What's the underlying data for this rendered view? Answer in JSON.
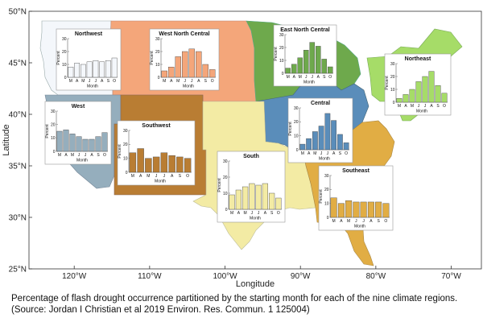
{
  "chart_data": {
    "type": "bar",
    "title": "Percentage of flash drought occurrence partitioned by the starting month for each of the nine climate regions.",
    "xlabel": "Longitude",
    "ylabel": "Latitude",
    "x_ticks": [
      "120°W",
      "110°W",
      "100°W",
      "90°W",
      "80°W",
      "70°W"
    ],
    "x_tick_values": [
      -120,
      -110,
      -100,
      -90,
      -80,
      -70
    ],
    "y_ticks": [
      "25°N",
      "30°N",
      "35°N",
      "40°N",
      "45°N",
      "50°N"
    ],
    "y_tick_values": [
      25,
      30,
      35,
      40,
      45,
      50
    ],
    "xlim": [
      -126,
      -66
    ],
    "ylim": [
      25,
      50
    ],
    "inset": {
      "categories": [
        "M",
        "A",
        "M",
        "J",
        "J",
        "A",
        "S",
        "O"
      ],
      "tick_labels": [
        "M",
        "A",
        "M",
        "J",
        "J",
        "A",
        "S",
        "O"
      ],
      "xlabel": "Month",
      "ylabel": "Percent",
      "ylim": [
        0,
        30
      ],
      "yticks": [
        "0",
        "10",
        "20",
        "30"
      ]
    },
    "regions": [
      {
        "name": "Northwest",
        "color": "#f4f7fb",
        "values": [
          8,
          11,
          10,
          12,
          13,
          12,
          13,
          15
        ]
      },
      {
        "name": "West North Central",
        "color": "#f4a67a",
        "values": [
          5,
          8,
          16,
          20,
          22,
          20,
          10,
          6
        ]
      },
      {
        "name": "East North Central",
        "color": "#6ea94c",
        "values": [
          4,
          7,
          12,
          18,
          24,
          21,
          11,
          5
        ]
      },
      {
        "name": "Northeast",
        "color": "#a6dc68",
        "values": [
          3,
          6,
          10,
          16,
          20,
          24,
          13,
          7
        ]
      },
      {
        "name": "West",
        "color": "#95aebd",
        "values": [
          15,
          16,
          13,
          11,
          9,
          9,
          11,
          14
        ]
      },
      {
        "name": "Southwest",
        "color": "#b97d33",
        "values": [
          14,
          17,
          10,
          11,
          14,
          12,
          11,
          10
        ]
      },
      {
        "name": "Central",
        "color": "#5a8dba",
        "values": [
          4,
          8,
          13,
          17,
          26,
          21,
          11,
          5
        ]
      },
      {
        "name": "South",
        "color": "#f3eba4",
        "values": [
          9,
          12,
          14,
          16,
          15,
          16,
          10,
          7
        ]
      },
      {
        "name": "Southeast",
        "color": "#e1ad44",
        "values": [
          14,
          10,
          12,
          11,
          11,
          11,
          11,
          10
        ]
      }
    ]
  },
  "caption": {
    "line1": "Percentage of flash drought occurrence partitioned by the starting month for each of the nine climate regions.",
    "line2": "(Source: Jordan I Christian et al 2019 Environ. Res. Commun. 1 125004)"
  }
}
